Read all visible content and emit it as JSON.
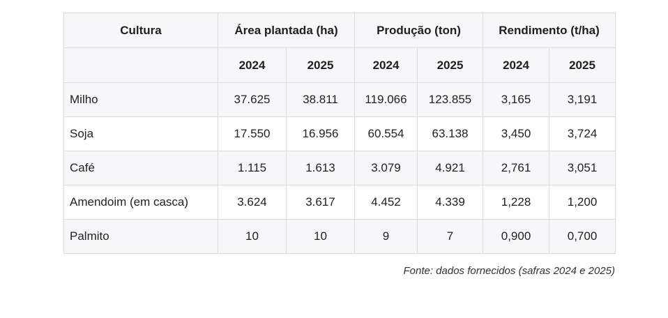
{
  "table": {
    "header": {
      "culture": "Cultura",
      "groups": [
        {
          "label": "Área plantada (ha)"
        },
        {
          "label": "Produção (ton)"
        },
        {
          "label": "Rendimento (t/ha)"
        }
      ],
      "years": [
        "2024",
        "2025",
        "2024",
        "2025",
        "2024",
        "2025"
      ]
    },
    "rows": [
      {
        "culture": "Milho",
        "values": [
          "37.625",
          "38.811",
          "119.066",
          "123.855",
          "3,165",
          "3,191"
        ]
      },
      {
        "culture": "Soja",
        "values": [
          "17.550",
          "16.956",
          "60.554",
          "63.138",
          "3,450",
          "3,724"
        ]
      },
      {
        "culture": "Café",
        "values": [
          "1.115",
          "1.613",
          "3.079",
          "4.921",
          "2,761",
          "3,051"
        ]
      },
      {
        "culture": "Amendoim (em casca)",
        "values": [
          "3.624",
          "3.617",
          "4.452",
          "4.339",
          "1,228",
          "1,200"
        ]
      },
      {
        "culture": "Palmito",
        "values": [
          "10",
          "10",
          "9",
          "7",
          "0,900",
          "0,700"
        ]
      }
    ]
  },
  "source": "Fonte: dados fornecidos (safras 2024 e 2025)"
}
